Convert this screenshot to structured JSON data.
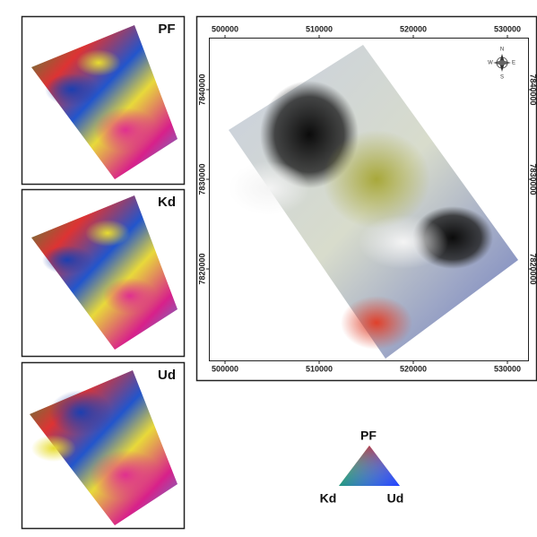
{
  "panels": [
    {
      "label": "PF"
    },
    {
      "label": "Kd"
    },
    {
      "label": "Ud"
    }
  ],
  "main_map": {
    "x_ticks_top": [
      500000,
      510000,
      520000,
      530000
    ],
    "x_ticks_bottom": [
      500000,
      510000,
      520000,
      530000
    ],
    "y_ticks_left": [
      7840000,
      7830000,
      7820000
    ],
    "y_ticks_right": [
      7840000,
      7830000,
      7820000
    ],
    "compass": {
      "n": "N",
      "e": "E",
      "s": "S",
      "w": "W"
    }
  },
  "legend": {
    "top": "PF",
    "left": "Kd",
    "right": "Ud"
  }
}
